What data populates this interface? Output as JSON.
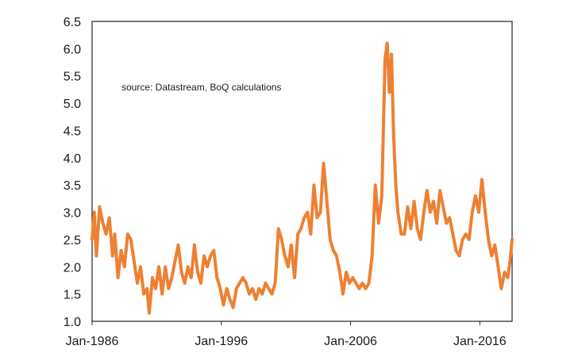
{
  "chart_data": {
    "type": "line",
    "title": "",
    "xlabel": "",
    "ylabel": "",
    "annotation": "source:  Datastream, BoQ calculations",
    "ylim": [
      1.0,
      6.5
    ],
    "yticks": [
      "1.0",
      "1.5",
      "2.0",
      "2.5",
      "3.0",
      "3.5",
      "4.0",
      "4.5",
      "5.0",
      "5.5",
      "6.0",
      "6.5"
    ],
    "xlim": [
      "1986-01",
      "2018-07"
    ],
    "xticks": [
      {
        "date": "1986-01",
        "label": "Jan-1986"
      },
      {
        "date": "1996-01",
        "label": "Jan-1996"
      },
      {
        "date": "2006-01",
        "label": "Jan-2006"
      },
      {
        "date": "2016-01",
        "label": "Jan-2016"
      }
    ],
    "grid": false,
    "legend": "none",
    "color": "#ee8033",
    "series": [
      {
        "name": "",
        "points": [
          [
            "1986-01",
            2.5
          ],
          [
            "1986-03",
            3.0
          ],
          [
            "1986-05",
            2.2
          ],
          [
            "1986-08",
            3.1
          ],
          [
            "1986-11",
            2.8
          ],
          [
            "1987-02",
            2.6
          ],
          [
            "1987-05",
            2.9
          ],
          [
            "1987-08",
            2.2
          ],
          [
            "1987-10",
            2.6
          ],
          [
            "1988-01",
            1.8
          ],
          [
            "1988-04",
            2.3
          ],
          [
            "1988-07",
            2.0
          ],
          [
            "1988-10",
            2.6
          ],
          [
            "1989-01",
            2.5
          ],
          [
            "1989-04",
            2.1
          ],
          [
            "1989-07",
            1.7
          ],
          [
            "1989-10",
            2.0
          ],
          [
            "1990-01",
            1.5
          ],
          [
            "1990-04",
            1.6
          ],
          [
            "1990-06",
            1.15
          ],
          [
            "1990-09",
            1.8
          ],
          [
            "1990-12",
            1.6
          ],
          [
            "1991-03",
            2.0
          ],
          [
            "1991-06",
            1.5
          ],
          [
            "1991-09",
            2.0
          ],
          [
            "1991-12",
            1.6
          ],
          [
            "1992-03",
            1.8
          ],
          [
            "1992-06",
            2.1
          ],
          [
            "1992-09",
            2.4
          ],
          [
            "1992-12",
            1.9
          ],
          [
            "1993-03",
            1.7
          ],
          [
            "1993-06",
            2.0
          ],
          [
            "1993-09",
            1.8
          ],
          [
            "1993-12",
            2.4
          ],
          [
            "1994-03",
            1.9
          ],
          [
            "1994-06",
            1.7
          ],
          [
            "1994-09",
            2.2
          ],
          [
            "1994-12",
            2.0
          ],
          [
            "1995-03",
            2.2
          ],
          [
            "1995-06",
            2.3
          ],
          [
            "1995-09",
            1.8
          ],
          [
            "1995-12",
            1.6
          ],
          [
            "1996-03",
            1.3
          ],
          [
            "1996-06",
            1.6
          ],
          [
            "1996-09",
            1.4
          ],
          [
            "1996-12",
            1.25
          ],
          [
            "1997-03",
            1.6
          ],
          [
            "1997-06",
            1.7
          ],
          [
            "1997-09",
            1.8
          ],
          [
            "1997-12",
            1.7
          ],
          [
            "1998-03",
            1.5
          ],
          [
            "1998-06",
            1.6
          ],
          [
            "1998-09",
            1.4
          ],
          [
            "1998-12",
            1.6
          ],
          [
            "1999-03",
            1.5
          ],
          [
            "1999-06",
            1.7
          ],
          [
            "1999-09",
            1.6
          ],
          [
            "1999-12",
            1.5
          ],
          [
            "2000-03",
            1.7
          ],
          [
            "2000-06",
            2.7
          ],
          [
            "2000-09",
            2.5
          ],
          [
            "2000-12",
            2.2
          ],
          [
            "2001-03",
            2.0
          ],
          [
            "2001-06",
            2.4
          ],
          [
            "2001-09",
            1.8
          ],
          [
            "2001-12",
            2.6
          ],
          [
            "2002-03",
            2.7
          ],
          [
            "2002-06",
            2.9
          ],
          [
            "2002-09",
            3.0
          ],
          [
            "2002-12",
            2.6
          ],
          [
            "2003-03",
            3.5
          ],
          [
            "2003-06",
            2.9
          ],
          [
            "2003-09",
            3.0
          ],
          [
            "2003-12",
            3.9
          ],
          [
            "2004-03",
            3.2
          ],
          [
            "2004-06",
            2.5
          ],
          [
            "2004-09",
            2.3
          ],
          [
            "2004-12",
            2.2
          ],
          [
            "2005-03",
            1.9
          ],
          [
            "2005-06",
            1.5
          ],
          [
            "2005-09",
            1.9
          ],
          [
            "2005-12",
            1.7
          ],
          [
            "2006-03",
            1.8
          ],
          [
            "2006-06",
            1.7
          ],
          [
            "2006-09",
            1.6
          ],
          [
            "2006-12",
            1.7
          ],
          [
            "2007-03",
            1.6
          ],
          [
            "2007-06",
            1.7
          ],
          [
            "2007-09",
            2.2
          ],
          [
            "2007-12",
            3.5
          ],
          [
            "2008-03",
            2.8
          ],
          [
            "2008-06",
            3.3
          ],
          [
            "2008-09",
            5.8
          ],
          [
            "2008-11",
            6.1
          ],
          [
            "2009-01",
            5.2
          ],
          [
            "2009-03",
            5.9
          ],
          [
            "2009-05",
            4.4
          ],
          [
            "2009-07",
            3.5
          ],
          [
            "2009-09",
            3.0
          ],
          [
            "2009-12",
            2.6
          ],
          [
            "2010-03",
            2.6
          ],
          [
            "2010-06",
            3.1
          ],
          [
            "2010-09",
            2.7
          ],
          [
            "2010-12",
            3.2
          ],
          [
            "2011-03",
            2.7
          ],
          [
            "2011-06",
            2.5
          ],
          [
            "2011-09",
            3.0
          ],
          [
            "2011-12",
            3.4
          ],
          [
            "2012-03",
            3.0
          ],
          [
            "2012-06",
            3.2
          ],
          [
            "2012-09",
            2.8
          ],
          [
            "2012-12",
            3.4
          ],
          [
            "2013-03",
            3.1
          ],
          [
            "2013-06",
            2.8
          ],
          [
            "2013-09",
            2.9
          ],
          [
            "2013-12",
            2.6
          ],
          [
            "2014-03",
            2.3
          ],
          [
            "2014-06",
            2.2
          ],
          [
            "2014-09",
            2.5
          ],
          [
            "2014-12",
            2.6
          ],
          [
            "2015-03",
            2.5
          ],
          [
            "2015-06",
            3.0
          ],
          [
            "2015-09",
            3.3
          ],
          [
            "2015-12",
            3.0
          ],
          [
            "2016-03",
            3.6
          ],
          [
            "2016-06",
            3.0
          ],
          [
            "2016-09",
            2.5
          ],
          [
            "2016-12",
            2.2
          ],
          [
            "2017-03",
            2.4
          ],
          [
            "2017-06",
            2.0
          ],
          [
            "2017-09",
            1.6
          ],
          [
            "2017-12",
            1.9
          ],
          [
            "2018-03",
            1.8
          ],
          [
            "2018-05",
            2.1
          ],
          [
            "2018-07",
            2.5
          ]
        ]
      }
    ]
  }
}
